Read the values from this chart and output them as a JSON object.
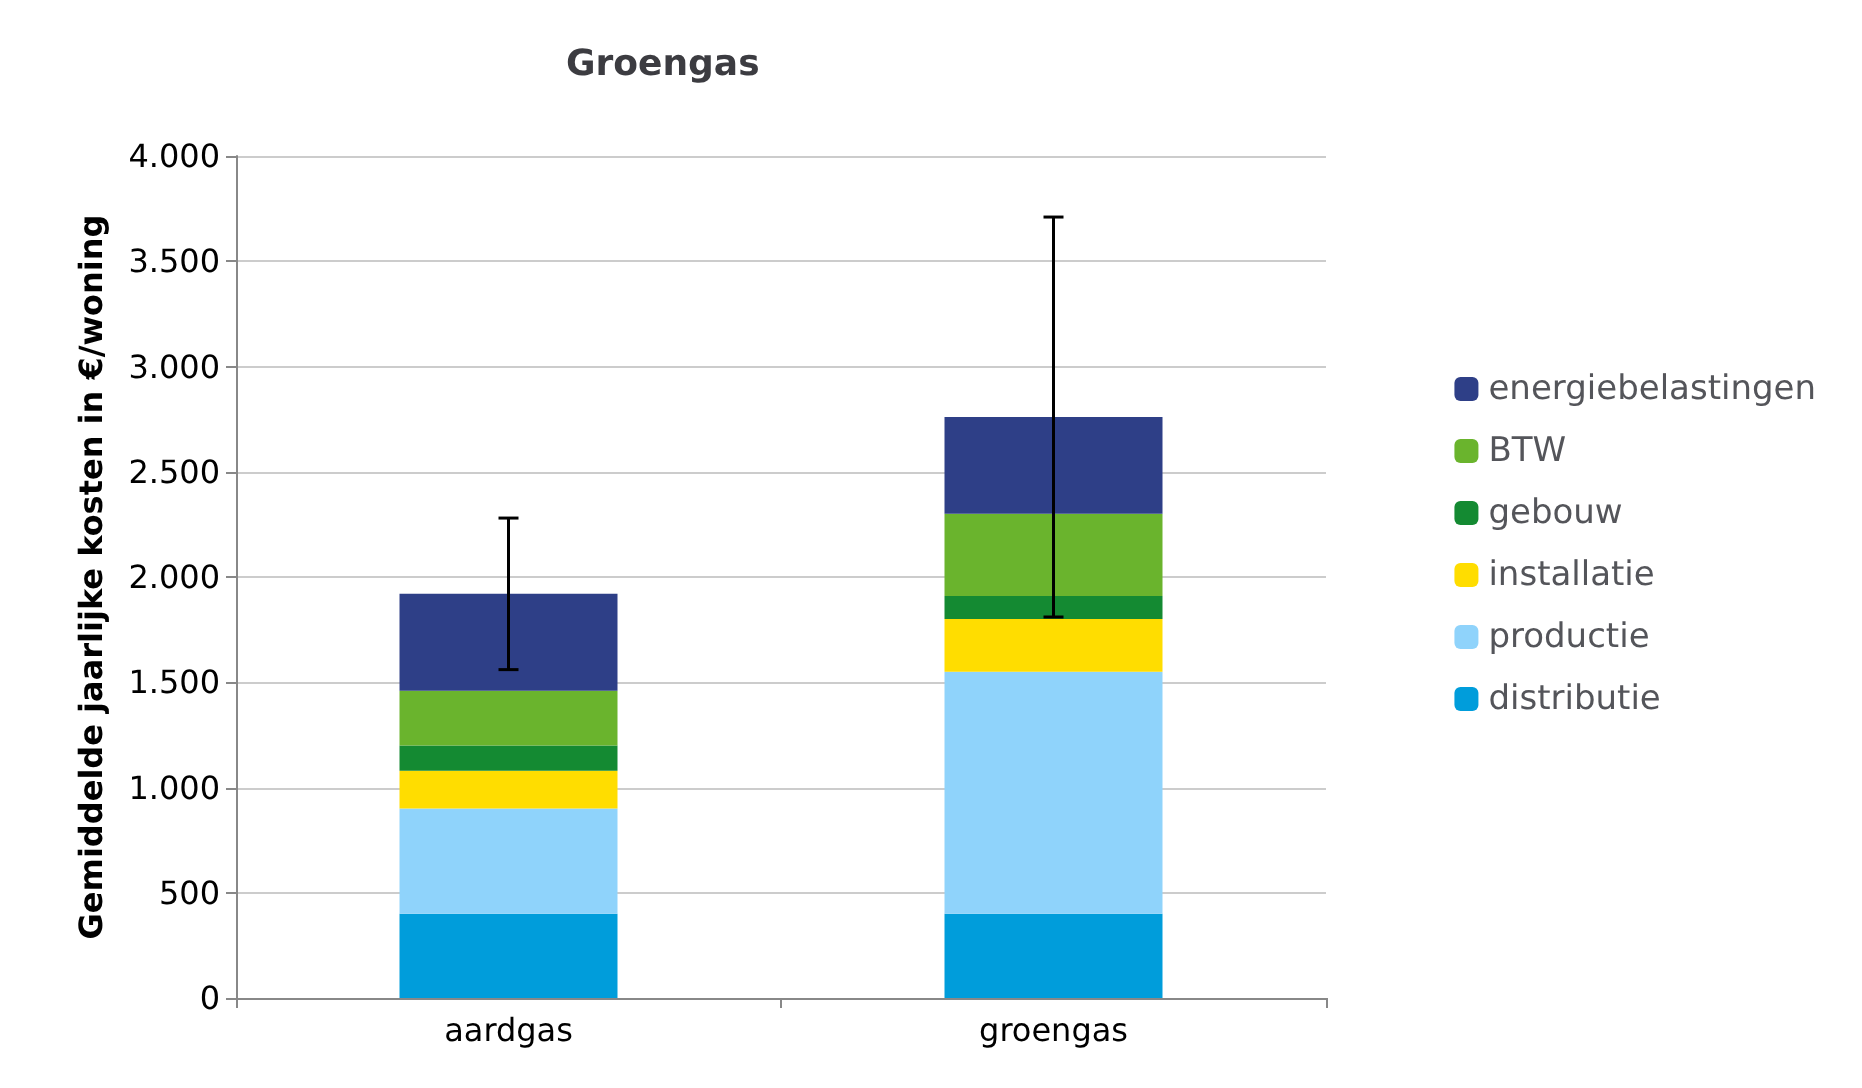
{
  "chart_data": {
    "type": "bar",
    "title": "Groengas",
    "ylabel": "Gemiddelde jaarlijke kosten in €/woning",
    "stacked": true,
    "categories": [
      "aardgas",
      "groengas"
    ],
    "series": [
      {
        "name": "distributie",
        "color": "#009ddb",
        "values": [
          400,
          400
        ]
      },
      {
        "name": "productie",
        "color": "#8fd3fb",
        "values": [
          500,
          1150
        ]
      },
      {
        "name": "installatie",
        "color": "#ffdd00",
        "values": [
          180,
          250
        ]
      },
      {
        "name": "gebouw",
        "color": "#148a32",
        "values": [
          120,
          110
        ]
      },
      {
        "name": "BTW",
        "color": "#6ab42d",
        "values": [
          260,
          390
        ]
      },
      {
        "name": "energiebelastingen",
        "color": "#2e3f87",
        "values": [
          460,
          460
        ],
        "errors": [
          360,
          950
        ]
      }
    ],
    "ylim": [
      0,
      4000
    ],
    "yticks": [
      0,
      {
        "value": 500,
        "label": "500"
      },
      {
        "value": 1000,
        "label": "1.000"
      },
      {
        "value": 1500,
        "label": "1.500"
      },
      {
        "value": 2000,
        "label": "2.000"
      },
      {
        "value": 2500,
        "label": "2.500"
      },
      {
        "value": 3000,
        "label": "3.000"
      },
      {
        "value": 3500,
        "label": "3.500"
      },
      {
        "value": 4000,
        "label": "4.000"
      }
    ],
    "grid": "y",
    "legend": "right"
  }
}
